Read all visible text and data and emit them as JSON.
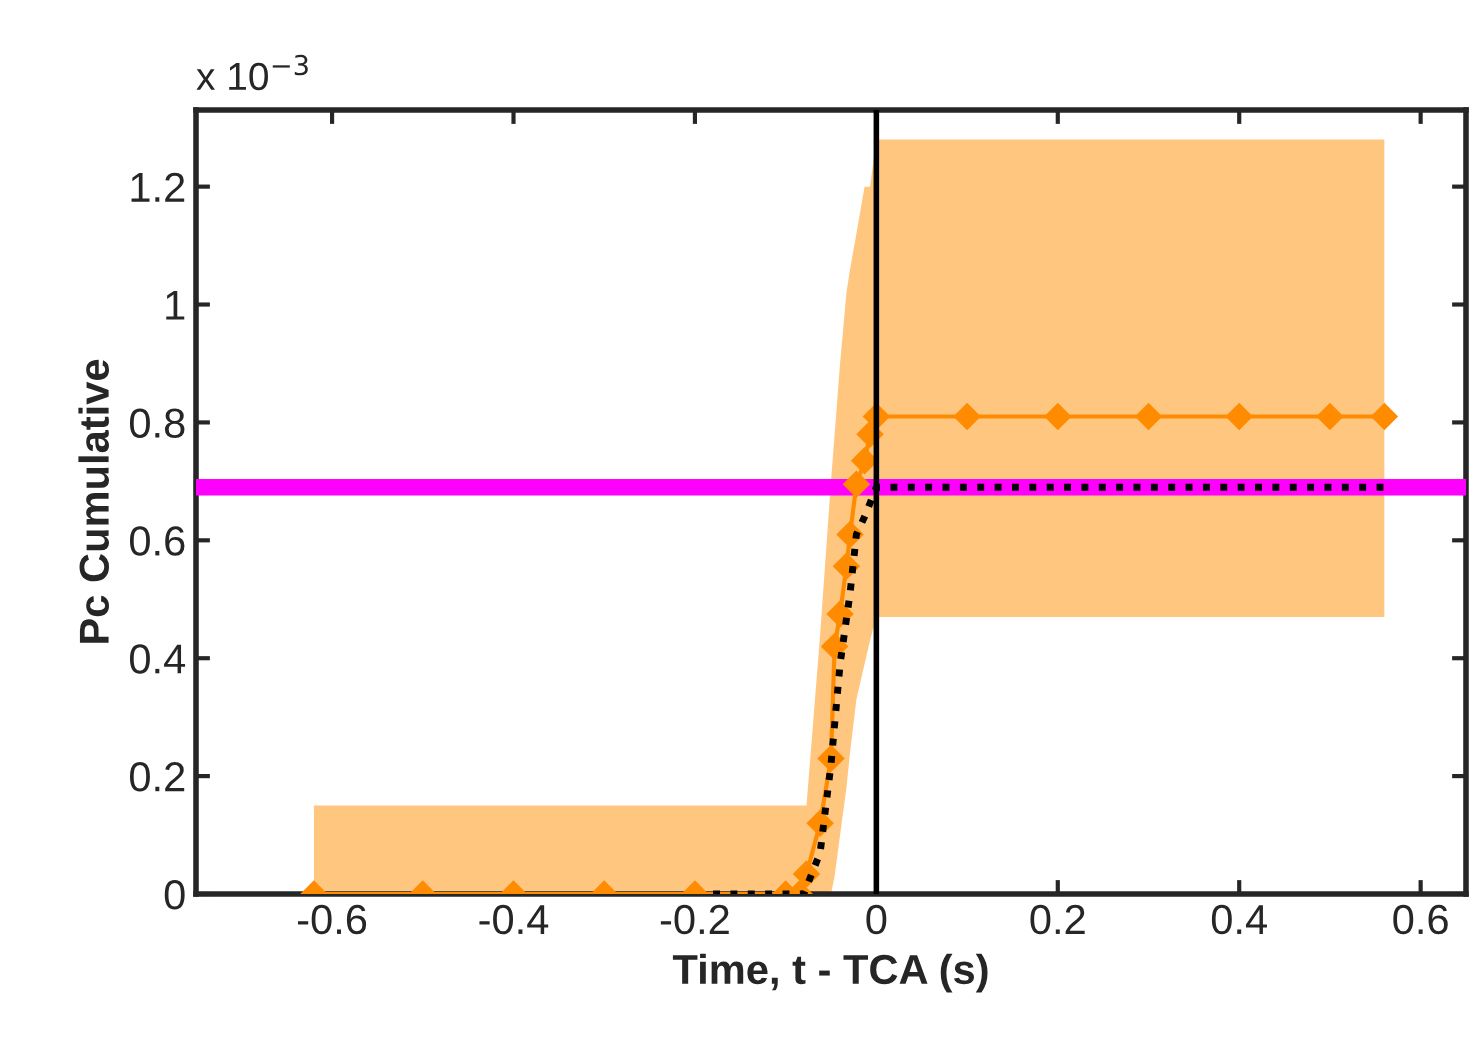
{
  "chart_data": {
    "type": "line",
    "xlabel": "Time, t - TCA (s)",
    "ylabel": "Pc Cumulative",
    "annotations": [
      "x 10$^{−3}$"
    ],
    "xlim": [
      -0.75,
      0.65
    ],
    "xticks": [
      -0.6,
      -0.4,
      -0.2,
      0,
      0.2,
      0.4,
      0.6
    ],
    "ylim": [
      0,
      1.33
    ],
    "yticks": [
      0,
      0.2,
      0.4,
      0.6,
      0.8,
      1,
      1.2
    ],
    "grid": false,
    "legend": false,
    "series": [
      {
        "color": "#000000",
        "marker": "none",
        "line_style": "dotted",
        "x": [
          -0.18,
          -0.08,
          -0.062,
          -0.05,
          -0.04,
          -0.029,
          -0.022,
          -0.013,
          0,
          0.56
        ],
        "values": [
          0,
          0,
          0.07,
          0.22,
          0.39,
          0.51,
          0.61,
          0.64,
          0.69,
          0.69
        ]
      },
      {
        "color": "#ff8c00",
        "marker": "diamond",
        "line_style": "solid",
        "x": [
          -0.62,
          -0.5,
          -0.4,
          -0.3,
          -0.2,
          -0.1,
          -0.085,
          -0.077,
          -0.062,
          -0.05,
          -0.046,
          -0.04,
          -0.033,
          -0.029,
          -0.022,
          -0.013,
          -0.007,
          0,
          0.1,
          0.2,
          0.3,
          0.4,
          0.5,
          0.56
        ],
        "values": [
          0,
          0,
          0,
          0,
          0,
          0,
          0,
          0.034,
          0.12,
          0.23,
          0.42,
          0.475,
          0.556,
          0.61,
          0.695,
          0.735,
          0.78,
          0.81,
          0.81,
          0.81,
          0.81,
          0.81,
          0.81,
          0.81
        ],
        "lower": [
          0,
          0,
          0,
          0,
          0,
          0,
          0,
          0,
          0,
          0,
          0.03,
          0.1,
          0.18,
          0.24,
          0.33,
          0.39,
          0.43,
          0.47,
          0.47,
          0.47,
          0.47,
          0.47,
          0.47,
          0.47
        ],
        "upper": [
          0.15,
          0.15,
          0.15,
          0.15,
          0.15,
          0.15,
          0.15,
          0.15,
          0.44,
          0.7,
          0.78,
          0.9,
          1.02,
          1.06,
          1.12,
          1.2,
          1.2,
          1.28,
          1.28,
          1.28,
          1.28,
          1.28,
          1.28,
          1.28
        ]
      }
    ],
    "ref_lines": [
      {
        "axis": "y",
        "value": 0.69,
        "color": "#ff00ff"
      },
      {
        "axis": "x",
        "value": 0,
        "color": "#000000"
      }
    ]
  }
}
